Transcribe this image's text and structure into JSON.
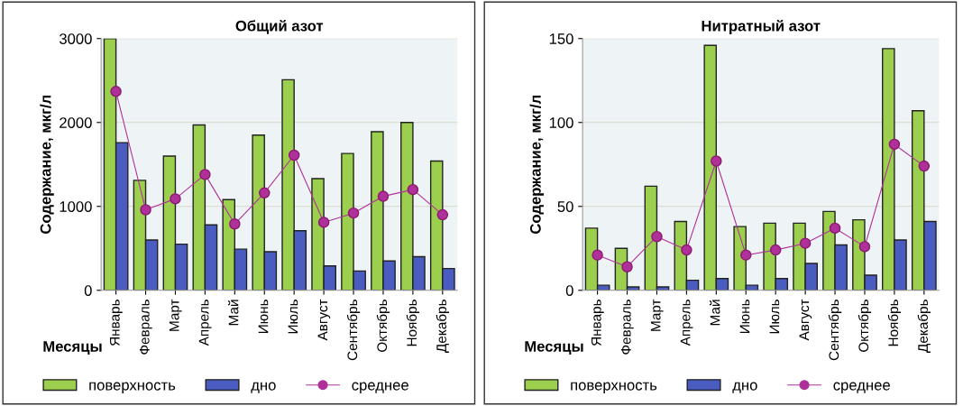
{
  "chart_data": [
    {
      "type": "bar",
      "title": "Общий азот",
      "xlabel": "Месяцы",
      "ylabel": "Содержание, мкг/л",
      "categories": [
        "Январь",
        "Февраль",
        "Март",
        "Апрель",
        "Май",
        "Июнь",
        "Июль",
        "Август",
        "Сентябрь",
        "Октябрь",
        "Ноябрь",
        "Декабрь"
      ],
      "series": [
        {
          "name": "поверхность",
          "color": "#9ccf4e",
          "values": [
            3000,
            1310,
            1600,
            1970,
            1080,
            1850,
            2510,
            1330,
            1630,
            1890,
            2000,
            1540
          ]
        },
        {
          "name": "дно",
          "color": "#4a5cc0",
          "values": [
            1760,
            600,
            550,
            780,
            490,
            460,
            710,
            290,
            230,
            350,
            400,
            260
          ]
        },
        {
          "name": "среднее",
          "type": "line",
          "color": "#b0309a",
          "marker": "circle",
          "values": [
            2370,
            960,
            1090,
            1380,
            790,
            1160,
            1610,
            810,
            920,
            1120,
            1200,
            900
          ]
        }
      ],
      "ylim": [
        0,
        3000
      ],
      "yticks": [
        0,
        1000,
        2000,
        3000
      ],
      "grid": "y",
      "legend": "bottom"
    },
    {
      "type": "bar",
      "title": "Нитратный азот",
      "xlabel": "Месяцы",
      "ylabel": "Содержание, мкг/л",
      "categories": [
        "Январь",
        "Февраль",
        "Март",
        "Апрель",
        "Май",
        "Июнь",
        "Июль",
        "Август",
        "Сентябрь",
        "Октябрь",
        "Ноябрь",
        "Декабрь"
      ],
      "series": [
        {
          "name": "поверхность",
          "color": "#9ccf4e",
          "values": [
            37,
            25,
            62,
            41,
            146,
            38,
            40,
            40,
            47,
            42,
            144,
            107
          ]
        },
        {
          "name": "дно",
          "color": "#4a5cc0",
          "values": [
            3,
            2,
            2,
            6,
            7,
            3,
            7,
            16,
            27,
            9,
            30,
            41
          ]
        },
        {
          "name": "среднее",
          "type": "line",
          "color": "#b0309a",
          "marker": "circle",
          "values": [
            21,
            14,
            32,
            24,
            77,
            21,
            24,
            28,
            37,
            26,
            87,
            74
          ]
        }
      ],
      "ylim": [
        0,
        150
      ],
      "yticks": [
        0,
        50,
        100,
        150
      ],
      "grid": "y",
      "legend": "bottom"
    }
  ]
}
